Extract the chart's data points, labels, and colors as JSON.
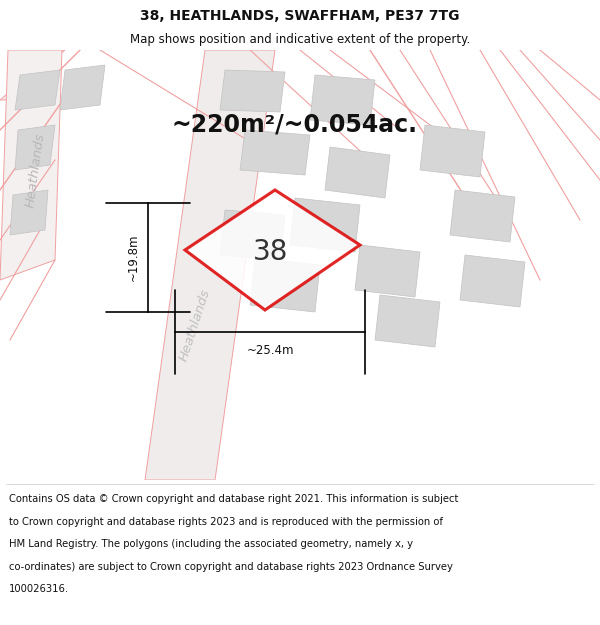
{
  "title": "38, HEATHLANDS, SWAFFHAM, PE37 7TG",
  "subtitle": "Map shows position and indicative extent of the property.",
  "footer_line1": "Contains OS data © Crown copyright and database right 2021. This information is subject",
  "footer_line2": "to Crown copyright and database rights 2023 and is reproduced with the permission of",
  "footer_line3": "HM Land Registry. The polygons (including the associated geometry, namely x, y",
  "footer_line4": "co-ordinates) are subject to Crown copyright and database rights 2023 Ordnance Survey",
  "footer_line5": "100026316.",
  "area_label": "~220m²/~0.054ac.",
  "width_label": "~25.4m",
  "height_label": "~19.8m",
  "number_label": "38",
  "bg_color": "#ffffff",
  "road_stroke": "#f0a0a0",
  "plot_stroke": "#dd0000",
  "title_fontsize": 10,
  "subtitle_fontsize": 8.5,
  "footer_fontsize": 7.2,
  "area_fontsize": 17,
  "number_fontsize": 20,
  "dim_fontsize": 8.5,
  "street_fontsize": 9.5
}
